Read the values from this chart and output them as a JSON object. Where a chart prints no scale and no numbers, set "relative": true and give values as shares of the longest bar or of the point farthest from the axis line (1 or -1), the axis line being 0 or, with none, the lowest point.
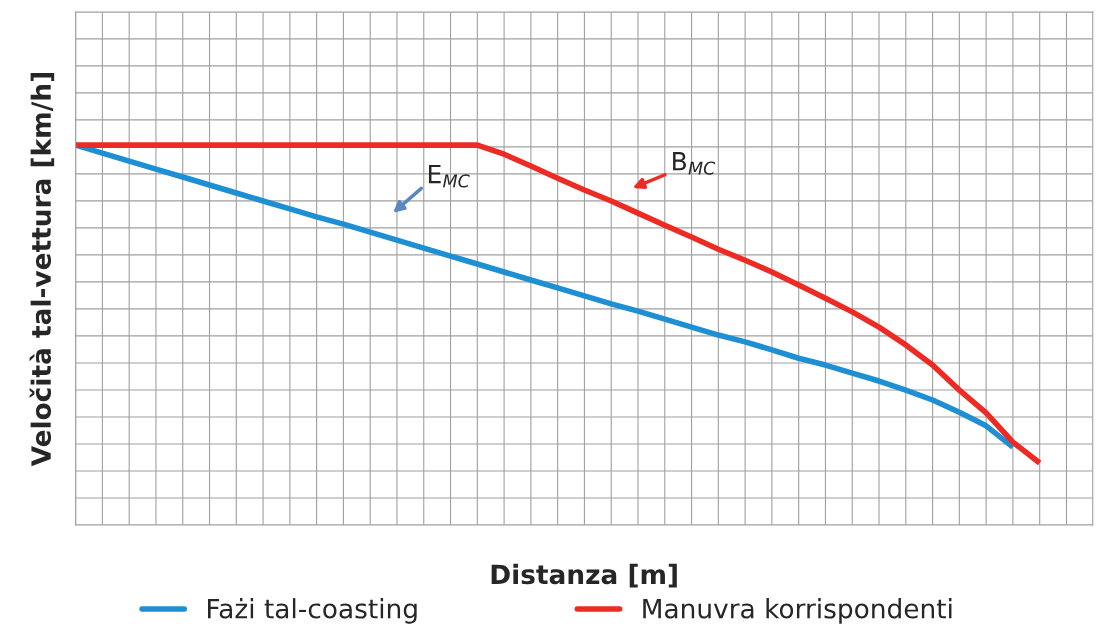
{
  "chart_data": {
    "type": "line",
    "relative": true,
    "ylabel": "Veločità tal-vettura [km/h]",
    "xlabel": "Distanza [m]",
    "categories": [
      null,
      null,
      null,
      null,
      null,
      null,
      null,
      null,
      null,
      null,
      null,
      null,
      null,
      null,
      null,
      null,
      null,
      null,
      null,
      null,
      null,
      null,
      null,
      null,
      null,
      null,
      null,
      null,
      null,
      null,
      null,
      null,
      null,
      null,
      null,
      null,
      null
    ],
    "series": [
      {
        "name": "Fażi tal-coasting",
        "color": "#1f8fd4",
        "values": [
          1.0,
          0.979,
          0.958,
          0.937,
          0.916,
          0.895,
          0.874,
          0.853,
          0.832,
          0.811,
          0.792,
          0.771,
          0.75,
          0.729,
          0.708,
          0.687,
          0.666,
          0.645,
          0.624,
          0.603,
          0.582,
          0.563,
          0.542,
          0.521,
          0.5,
          0.482,
          0.461,
          0.439,
          0.421,
          0.4,
          0.379,
          0.355,
          0.329,
          0.297,
          0.261,
          0.205,
          null
        ]
      },
      {
        "name": "Manuvra korrispondenti",
        "color": "#ee2a24",
        "values": [
          1.0,
          1.0,
          1.0,
          1.0,
          1.0,
          1.0,
          1.0,
          1.0,
          1.0,
          1.0,
          1.0,
          1.0,
          1.0,
          1.0,
          1.0,
          1.0,
          0.976,
          0.945,
          0.913,
          0.882,
          0.853,
          0.821,
          0.789,
          0.758,
          0.726,
          0.697,
          0.666,
          0.632,
          0.597,
          0.561,
          0.521,
          0.474,
          0.421,
          0.355,
          0.295,
          0.218,
          0.163
        ]
      }
    ],
    "annotations": [
      "E$_{MC}$",
      "B$_{MC}$"
    ],
    "grid": true,
    "legend": "bottom",
    "tick_labels": false,
    "line_style": "solid",
    "marker": "none"
  }
}
